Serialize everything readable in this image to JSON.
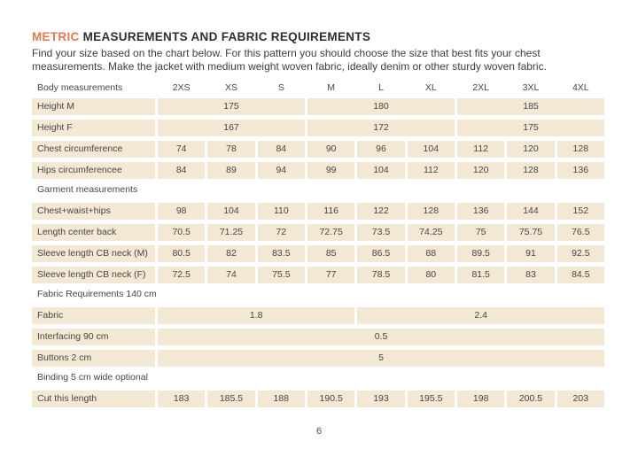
{
  "colors": {
    "accent": "#dd7a52",
    "cell_bg": "#f2e8d3",
    "text": "#3e3e3e"
  },
  "header": {
    "title_accent": "METRIC",
    "title_rest": " MEASUREMENTS AND FABRIC REQUIREMENTS",
    "intro_lines": [
      "Find your size based on the chart below. For this pattern you should choose the size that best fits your chest",
      "measurements. Make the jacket with medium weight woven fabric, ideally denim or other sturdy woven fabric."
    ]
  },
  "table": {
    "header": [
      "Body measurements",
      "2XS",
      "XS",
      "S",
      "M",
      "L",
      "XL",
      "2XL",
      "3XL",
      "4XL"
    ],
    "rows": [
      {
        "label": "Height M",
        "cells": [
          {
            "v": "175",
            "span": 3
          },
          {
            "v": "180",
            "span": 3
          },
          {
            "v": "185",
            "span": 3
          }
        ]
      },
      {
        "label": "Height F",
        "cells": [
          {
            "v": "167",
            "span": 3
          },
          {
            "v": "172",
            "span": 3
          },
          {
            "v": "175",
            "span": 3
          }
        ]
      },
      {
        "label": "Chest circumference",
        "cells": [
          {
            "v": "74"
          },
          {
            "v": "78"
          },
          {
            "v": "84"
          },
          {
            "v": "90"
          },
          {
            "v": "96"
          },
          {
            "v": "104"
          },
          {
            "v": "112"
          },
          {
            "v": "120"
          },
          {
            "v": "128"
          }
        ]
      },
      {
        "label": "Hips circumferencee",
        "cells": [
          {
            "v": "84"
          },
          {
            "v": "89"
          },
          {
            "v": "94"
          },
          {
            "v": "99"
          },
          {
            "v": "104"
          },
          {
            "v": "112"
          },
          {
            "v": "120"
          },
          {
            "v": "128"
          },
          {
            "v": "136"
          }
        ]
      },
      {
        "section": "Garment measurements"
      },
      {
        "label": "Chest+waist+hips",
        "cells": [
          {
            "v": "98"
          },
          {
            "v": "104"
          },
          {
            "v": "110"
          },
          {
            "v": "116"
          },
          {
            "v": "122"
          },
          {
            "v": "128"
          },
          {
            "v": "136"
          },
          {
            "v": "144"
          },
          {
            "v": "152"
          }
        ]
      },
      {
        "label": "Length center back",
        "cells": [
          {
            "v": "70.5"
          },
          {
            "v": "71.25"
          },
          {
            "v": "72"
          },
          {
            "v": "72.75"
          },
          {
            "v": "73.5"
          },
          {
            "v": "74.25"
          },
          {
            "v": "75"
          },
          {
            "v": "75.75"
          },
          {
            "v": "76.5"
          }
        ]
      },
      {
        "label": "Sleeve length CB neck (M)",
        "cells": [
          {
            "v": "80.5"
          },
          {
            "v": "82"
          },
          {
            "v": "83.5"
          },
          {
            "v": "85"
          },
          {
            "v": "86.5"
          },
          {
            "v": "88"
          },
          {
            "v": "89.5"
          },
          {
            "v": "91"
          },
          {
            "v": "92.5"
          }
        ]
      },
      {
        "label": "Sleeve length CB neck (F)",
        "cells": [
          {
            "v": "72.5"
          },
          {
            "v": "74"
          },
          {
            "v": "75.5"
          },
          {
            "v": "77"
          },
          {
            "v": "78.5"
          },
          {
            "v": "80"
          },
          {
            "v": "81.5"
          },
          {
            "v": "83"
          },
          {
            "v": "84.5"
          }
        ]
      },
      {
        "section": "Fabric Requirements 140 cm"
      },
      {
        "label": "Fabric",
        "cells": [
          {
            "v": "1.8",
            "span": 4
          },
          {
            "v": "2.4",
            "span": 5
          }
        ]
      },
      {
        "label": "Interfacing 90 cm",
        "cells": [
          {
            "v": "0.5",
            "span": 9
          }
        ]
      },
      {
        "label": "Buttons 2 cm",
        "cells": [
          {
            "v": "5",
            "span": 9
          }
        ]
      },
      {
        "section": "Binding 5 cm wide optional"
      },
      {
        "label": "Cut this length",
        "cells": [
          {
            "v": "183"
          },
          {
            "v": "185.5"
          },
          {
            "v": "188"
          },
          {
            "v": "190.5"
          },
          {
            "v": "193"
          },
          {
            "v": "195.5"
          },
          {
            "v": "198"
          },
          {
            "v": "200.5"
          },
          {
            "v": "203"
          }
        ]
      }
    ]
  },
  "footer": {
    "page_number": "6"
  }
}
